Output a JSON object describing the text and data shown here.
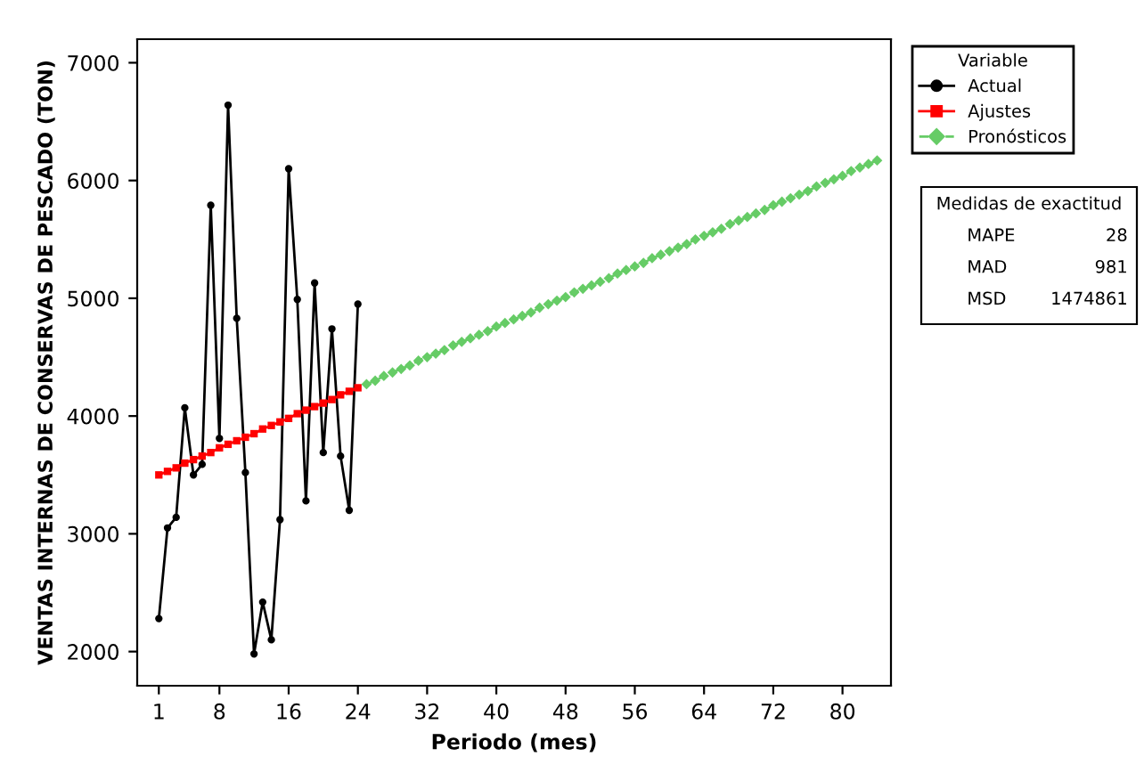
{
  "chart_data": {
    "type": "line",
    "xlabel": "Periodo (mes)",
    "ylabel": "VENTAS INTERNAS DE CONSERVAS DE PESCADO (TON)",
    "legend_title": "Variable",
    "legend": "right",
    "grid": false,
    "xlim": [
      -1.5,
      85.6
    ],
    "xticks": [
      1,
      8,
      16,
      24,
      32,
      40,
      48,
      56,
      64,
      72,
      80
    ],
    "ylim": [
      1710,
      7200
    ],
    "yticks": [
      2000,
      3000,
      4000,
      5000,
      6000,
      7000
    ],
    "annotations": [
      "Medidas de exactitud",
      "MAPE",
      "28",
      "MAD",
      "981",
      "MSD",
      "1474861"
    ],
    "series": [
      {
        "name": "Actual",
        "color": "#000000",
        "marker": "circle",
        "line_style": "solid",
        "x": [
          1,
          2,
          3,
          4,
          5,
          6,
          7,
          8,
          9,
          10,
          11,
          12,
          13,
          14,
          15,
          16,
          17,
          18,
          19,
          20,
          21,
          22,
          23,
          24
        ],
        "values": [
          2280,
          3050,
          3140,
          4070,
          3500,
          3590,
          5790,
          3810,
          6640,
          4830,
          3520,
          1980,
          2420,
          2100,
          3120,
          6100,
          4990,
          3280,
          5130,
          3690,
          4740,
          3660,
          3200,
          4950
        ]
      },
      {
        "name": "Ajustes",
        "color": "#ff0000",
        "marker": "square",
        "line_style": "solid",
        "x": [
          1,
          2,
          3,
          4,
          5,
          6,
          7,
          8,
          9,
          10,
          11,
          12,
          13,
          14,
          15,
          16,
          17,
          18,
          19,
          20,
          21,
          22,
          23,
          24
        ],
        "values": [
          3500,
          3530,
          3560,
          3600,
          3630,
          3660,
          3690,
          3730,
          3760,
          3790,
          3820,
          3850,
          3890,
          3920,
          3950,
          3980,
          4020,
          4050,
          4080,
          4110,
          4140,
          4180,
          4210,
          4240
        ]
      },
      {
        "name": "Pronósticos",
        "color": "#66cc66",
        "marker": "diamond",
        "line_style": "dashed",
        "x": [
          25,
          26,
          27,
          28,
          29,
          30,
          31,
          32,
          33,
          34,
          35,
          36,
          37,
          38,
          39,
          40,
          41,
          42,
          43,
          44,
          45,
          46,
          47,
          48,
          49,
          50,
          51,
          52,
          53,
          54,
          55,
          56,
          57,
          58,
          59,
          60,
          61,
          62,
          63,
          64,
          65,
          66,
          67,
          68,
          69,
          70,
          71,
          72,
          73,
          74,
          75,
          76,
          77,
          78,
          79,
          80,
          81,
          82,
          83,
          84
        ],
        "values": [
          4270,
          4300,
          4340,
          4370,
          4400,
          4430,
          4470,
          4500,
          4530,
          4560,
          4600,
          4630,
          4660,
          4690,
          4720,
          4760,
          4790,
          4820,
          4850,
          4880,
          4920,
          4950,
          4980,
          5010,
          5050,
          5080,
          5110,
          5140,
          5170,
          5210,
          5240,
          5270,
          5300,
          5340,
          5370,
          5400,
          5430,
          5460,
          5500,
          5530,
          5560,
          5590,
          5630,
          5660,
          5690,
          5720,
          5750,
          5790,
          5820,
          5850,
          5880,
          5910,
          5950,
          5980,
          6010,
          6040,
          6080,
          6110,
          6140,
          6170
        ]
      }
    ]
  }
}
